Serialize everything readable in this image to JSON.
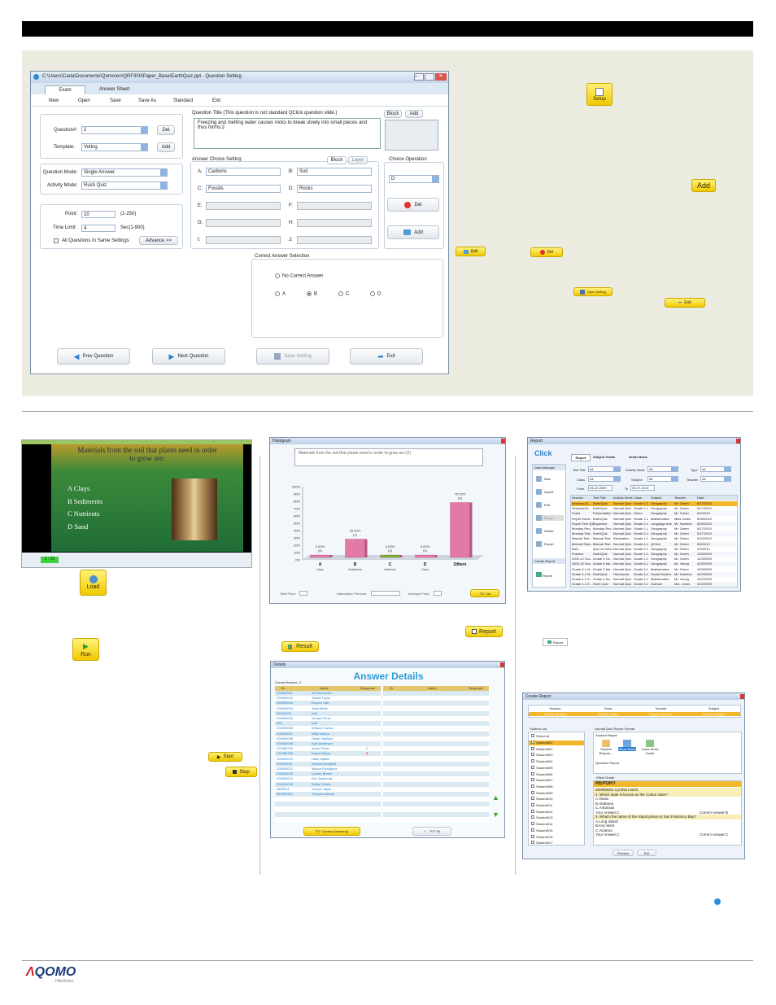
{
  "window": {
    "title": "C:\\Users\\Carla\\Documents\\Qomo\\en\\QRF300\\Paper_Base\\EarthQuiz.ppt - Question Setting"
  },
  "tabs": [
    "Exam",
    "Answer Sheet"
  ],
  "menu": [
    "New",
    "Open",
    "Save",
    "Save As",
    "Standard",
    "Exit"
  ],
  "question": {
    "number_label": "Question#:",
    "number_value": "2",
    "del": "Del",
    "template_label": "Template:",
    "template_value": "Voting",
    "add": "Add"
  },
  "mode": {
    "question_mode_label": "Question Mode:",
    "question_mode_value": "Single Answer",
    "activity_mode_label": "Activity Mode:",
    "activity_mode_value": "Rush Quiz"
  },
  "points": {
    "point_label": "Point:",
    "point_value": "10",
    "point_range": "(1-250)",
    "time_label": "Time Limit:",
    "time_value": "4",
    "time_range": "Sec(1-900)",
    "all_label": "All Questions In Same Settings",
    "advance": "Advance >>"
  },
  "title_box": {
    "heading": "Question Title (This question is not standard QClick question slide.)",
    "text": "Freezing and melting water causes rocks to break slowly into small pieces and thus forms:2",
    "block": "Block",
    "add": "Add"
  },
  "choices": {
    "heading": "Answer Choice Setting",
    "block": "Block",
    "layer": "Layer",
    "items": [
      {
        "l": "A:",
        "v": "Carbons"
      },
      {
        "l": "B:",
        "v": "Soil"
      },
      {
        "l": "C:",
        "v": "Fossils"
      },
      {
        "l": "D:",
        "v": "Rocks"
      },
      {
        "l": "E:",
        "v": ""
      },
      {
        "l": "F:",
        "v": ""
      },
      {
        "l": "G:",
        "v": ""
      },
      {
        "l": "H:",
        "v": ""
      },
      {
        "l": "I:",
        "v": ""
      },
      {
        "l": "J:",
        "v": ""
      }
    ]
  },
  "choice_op": {
    "heading": "Choice Operation",
    "value": "D",
    "del": "Del",
    "add": "Add"
  },
  "correct": {
    "heading": "Correct Answer Selection",
    "none": "No Correct Answer",
    "opts": [
      "A",
      "B",
      "C",
      "D"
    ]
  },
  "bottom_buttons": {
    "prev": "Prev Question",
    "next": "Next Question",
    "save": "Save Setting",
    "exit": "Exit"
  },
  "side_buttons": {
    "setup": "Setup",
    "add_big": "Add",
    "add_small": "Add",
    "del_small": "Del",
    "save_small": "Save Setting",
    "exit_small": "Exit"
  },
  "slide": {
    "title": "Materials from the soil that plants need in order to grow are:",
    "options": [
      "A Clays",
      "B Sediments",
      "C Nutrients",
      "D Sand"
    ],
    "timer": "1 : 25"
  },
  "buttons_left": {
    "load": "Load",
    "run": "Run",
    "start": "Start",
    "stop": "Stop"
  },
  "histogram": {
    "window_title": "Histogram",
    "question": "Materials from the soil that plants need in order to grow are:(2)",
    "total_point": "Total Point:",
    "attendance": "Attendance Persons:",
    "average": "Average Point:",
    "ok": "\"F2\" Ok"
  },
  "chart_data": {
    "type": "bar",
    "categories": [
      "A",
      "B",
      "C",
      "D",
      "Others"
    ],
    "category_names": [
      "Clays",
      "Sediments",
      "Nutrients",
      "Sand",
      ""
    ],
    "values": [
      0,
      25,
      0,
      0,
      75
    ],
    "data_labels": [
      "0.00%",
      "25.00%",
      "0.00%",
      "0.00%",
      "75.00%"
    ],
    "counts": [
      "(0)",
      "(1)",
      "(0)",
      "(0)",
      "(3)"
    ],
    "yticks": [
      "100%",
      "90%",
      "80%",
      "70%",
      "60%",
      "50%",
      "40%",
      "30%",
      "20%",
      "10%",
      "0%"
    ],
    "ylim": [
      0,
      100
    ],
    "colors": [
      "#e37aa6",
      "#e37aa6",
      "#7ab22c",
      "#e37aa6",
      "#e37aa6"
    ]
  },
  "report_buttons": {
    "report": "Report",
    "result": "Result",
    "report_small": "Report"
  },
  "answer_details": {
    "window_title": "Details",
    "title": "Answer Details",
    "correct": "Correct Answer: C",
    "cols": [
      "ID",
      "Name",
      "Response"
    ],
    "rows": [
      [
        "200900001",
        "Jill Hernandez",
        ""
      ],
      [
        "200900002",
        "Tokala Taylor",
        ""
      ],
      [
        "200900003",
        "Doreen Hall",
        ""
      ],
      [
        "200900004",
        "Jeda White",
        ""
      ],
      [
        "59784523",
        "Null",
        ""
      ],
      [
        "200900005",
        "Jordan Perez",
        ""
      ],
      [
        "666",
        "Null",
        ""
      ],
      [
        "200900006",
        "Brittany Garcia",
        ""
      ],
      [
        "200900007",
        "Willy Nelson",
        ""
      ],
      [
        "200900008",
        "Sarah Jackson",
        ""
      ],
      [
        "200900009",
        "Kyle Anderson",
        ""
      ],
      [
        "123456790",
        "Aaron Perez",
        "C"
      ],
      [
        "123456789",
        "Diana Dalma",
        "B"
      ],
      [
        "200900010",
        "Hatty Walker",
        ""
      ],
      [
        "200900011",
        "Zanina Campbell",
        ""
      ],
      [
        "200900012",
        "Marica Rodriguez",
        ""
      ],
      [
        "200900013",
        "Lauren Brown",
        ""
      ],
      [
        "200900014",
        "Kim Jackeong",
        ""
      ],
      [
        "200900015",
        "Esther Harris",
        ""
      ],
      [
        "8489014",
        "Joseph Taylor",
        ""
      ],
      [
        "987654321",
        "Thomas Adams",
        ""
      ]
    ],
    "btn_correct": "\"F1\" Correct Answer(s)",
    "btn_ok": "\"F2\" Ok"
  },
  "report": {
    "window_title": "Report",
    "logo": "Click",
    "tabs": [
      "Report",
      "Subject Grade",
      "Grade Book"
    ],
    "data_manager": "Data Manager",
    "actions": [
      "New",
      "Import",
      "Edit",
      "Merge",
      "Delete",
      "Export"
    ],
    "create_report": "Create Report",
    "report_btn": "Report",
    "filters": {
      "test_title": "Test Title",
      "all": "All",
      "activity_mode": "Activity Mode",
      "type": "Type",
      "class": "Class",
      "subject": "Subject",
      "teacher": "Teacher",
      "from": "From",
      "from_val": "04-22-2009",
      "to": "To",
      "to_val": "09-07-2010"
    },
    "cols": [
      "Session",
      "Test Title",
      "Activity Mode",
      "Class",
      "Subject",
      "Teacher",
      "Date"
    ],
    "rows": [
      [
        "Session(10...",
        "EarthQuiz",
        "Normal Quiz",
        "Grade 1-1",
        "Geography",
        "Mr. Green",
        "6/17/2010"
      ],
      [
        "Session(18...",
        "EarthQuiz",
        "Normal Quiz",
        "Grade 1-1",
        "Geography",
        "Mr. Green",
        "5/17/2010"
      ],
      [
        "Poets",
        "Presentation",
        "Normal Quiz",
        "Demo",
        "Geography",
        "Mr. Green",
        "6/4/2010"
      ],
      [
        "Key20 Earth...",
        "EarthQuiz",
        "Normal Quiz",
        "Grade 1-1",
        "Mathematics",
        "Miss Jones",
        "5/26/2010"
      ],
      [
        "Export Test 3(0...",
        "Exportest",
        "Normal Quiz",
        "Grade 2-1",
        "Language Arts",
        "Mr. Harrison",
        "5/25/2010"
      ],
      [
        "Monday Rev...",
        "Monday Rev...",
        "Normal Quiz",
        "Grade 1-1",
        "Geography",
        "Mr. Green",
        "5/17/2010"
      ],
      [
        "Monday Test",
        "EarthQuiz",
        "Normal Quiz",
        "Grade 2-1",
        "Geography",
        "Mr. Green",
        "5/17/2010"
      ],
      [
        "Manual Test...",
        "Manual Test",
        "Elimination",
        "Grade 1-1",
        "Geography",
        "Mr. Green",
        "5/14/2010"
      ],
      [
        "Manual Sess...",
        "Manual Test",
        "Normal Quiz",
        "Grade 4-1",
        "QClick",
        "Mr. Green",
        "5/4/2010"
      ],
      [
        "test1",
        "Quiz for infra...",
        "Normal Quiz",
        "Grade 2-1",
        "Geography",
        "Mr. Green",
        "2/9/2010"
      ],
      [
        "Practice",
        "EarthQuiz",
        "Normal Quiz",
        "Grade 1-1",
        "Geography",
        "Mr. Green",
        "12/8/2009"
      ],
      [
        "2009-10 Gra...",
        "Grade 6 Ge...",
        "Normal Quiz",
        "Grade 1-1",
        "Geography",
        "Mr. Green",
        "4/23/2009"
      ],
      [
        "2009-10 Gra...",
        "Grade 6 Ma...",
        "Normal Quiz",
        "Grade 6-1",
        "Geography",
        "Mr. Young",
        "4/23/2009"
      ],
      [
        "Grade 3-1 M...",
        "Grade 3 Ma...",
        "Normal Quiz",
        "Grade 3-1",
        "Mathematics",
        "Mr. Green",
        "4/23/2009"
      ],
      [
        "Grade 4-1 M...",
        "EarthQuiz",
        "Homework",
        "Grade 4-1",
        "Social Studies",
        "Mr. Harrison",
        "4/23/2009"
      ],
      [
        "Grade 4-1 S...",
        "Grade 4 Sci...",
        "Normal Quiz",
        "Grade 4-1",
        "Mathematics",
        "Mr. Young",
        "4/22/2009"
      ],
      [
        "Grade 1-1 E...",
        "Earth Quiz",
        "Normal Quiz",
        "Grade 3-1",
        "Science",
        "Mrs. Lewis",
        "4/22/2009"
      ]
    ]
  },
  "create_report": {
    "window_title": "Create Report",
    "cols": [
      "Session",
      "Class",
      "Teacher",
      "Subject"
    ],
    "vals": [
      "Sample Session",
      "Sample Class",
      "Sample Teacher",
      "Sample Subject"
    ],
    "student_list": "Student List",
    "select_all": "Select all",
    "students": [
      "Student001",
      "Student002",
      "Student003",
      "Student004",
      "Student005",
      "Student006",
      "Student007",
      "Student008",
      "Student009",
      "Student010",
      "Student011",
      "Student012",
      "Student013",
      "Student014",
      "Student015",
      "Student016",
      "Student017"
    ],
    "format": "Normal Quiz Report Format",
    "student_report": "Student Report",
    "icons": [
      "Student Respon...",
      "Show Detail",
      "Class Stock Guide"
    ],
    "question_report": "Question Report",
    "effect_grade": "Effect Grade",
    "report_title": "REPORT",
    "lines": [
      "200905001 Cynthia Harris",
      "2. Which state is known as the Cotton state?",
      "A.Texas",
      "B.Alabama",
      "C.Arkansas",
      "Your Answer:C",
      "Correct Answer:B",
      "3. What's the name of the island prison in San Francisco Bay?",
      "A.Long Island",
      "B.Key West",
      "C.Alcatraz",
      "Your Answer:C",
      "Correct Answer:C"
    ],
    "preview": "Preview",
    "exit": "Exit"
  },
  "footer": {
    "logo": "QOMO",
    "sub": "HiteVision"
  }
}
